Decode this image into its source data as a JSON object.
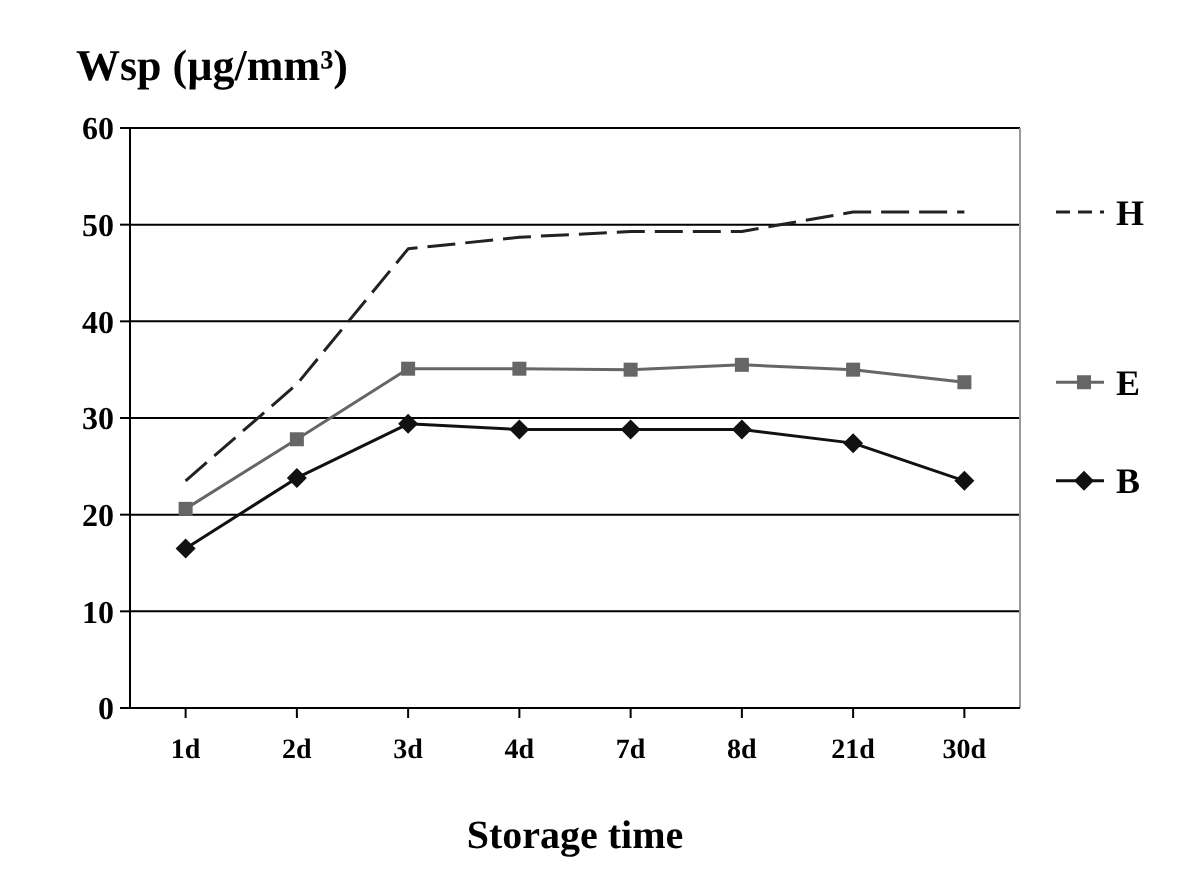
{
  "chart_data": {
    "type": "line",
    "title": "Wsp (µg/mm³)",
    "xlabel": "Storage time",
    "categories": [
      "1d",
      "2d",
      "3d",
      "4d",
      "7d",
      "8d",
      "21d",
      "30d"
    ],
    "series": [
      {
        "name": "H",
        "color": "#222222",
        "marker": "none",
        "line_style": "dashed",
        "values": [
          23.5,
          33.5,
          47.5,
          48.7,
          49.3,
          49.3,
          51.3,
          51.3
        ]
      },
      {
        "name": "E",
        "color": "#666666",
        "marker": "square",
        "line_style": "solid",
        "values": [
          20.6,
          27.8,
          35.1,
          35.1,
          35.0,
          35.5,
          35.0,
          33.7
        ]
      },
      {
        "name": "B",
        "color": "#111111",
        "marker": "diamond",
        "line_style": "solid",
        "values": [
          16.5,
          23.8,
          29.4,
          28.8,
          28.8,
          28.8,
          27.4,
          23.5
        ]
      }
    ],
    "ylim": [
      0,
      60
    ],
    "yticks": [
      0,
      10,
      20,
      30,
      40,
      50,
      60
    ],
    "grid": "y",
    "legend": "right"
  }
}
